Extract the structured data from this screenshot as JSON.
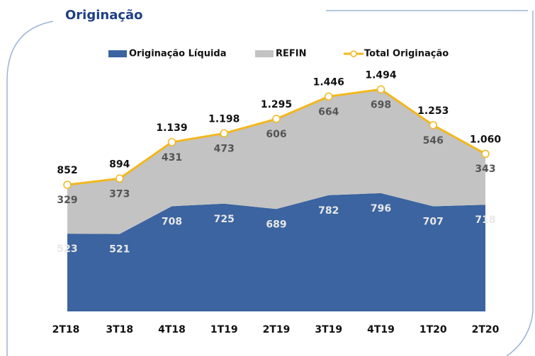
{
  "chart_data": {
    "type": "stacked_area_line",
    "title": "Originação",
    "categories": [
      "2T18",
      "3T18",
      "4T18",
      "1T19",
      "2T19",
      "3T19",
      "4T19",
      "1T20",
      "2T20"
    ],
    "series": [
      {
        "name": "Originação Líquida",
        "color": "#3b64a0",
        "type": "area",
        "values": [
          523,
          521,
          708,
          725,
          689,
          782,
          796,
          707,
          718
        ]
      },
      {
        "name": "REFIN",
        "color": "#c3c3c3",
        "type": "area",
        "values": [
          329,
          373,
          431,
          473,
          606,
          664,
          698,
          546,
          343
        ]
      },
      {
        "name": "Total Originação",
        "color": "#f2b71e",
        "type": "line",
        "values": [
          852,
          894,
          1139,
          1198,
          1295,
          1446,
          1494,
          1253,
          1060
        ],
        "value_labels": [
          "852",
          "894",
          "1.139",
          "1.198",
          "1.295",
          "1.446",
          "1.494",
          "1.253",
          "1.060"
        ]
      }
    ],
    "ylim": [
      0,
      1600
    ],
    "legend": "top"
  }
}
